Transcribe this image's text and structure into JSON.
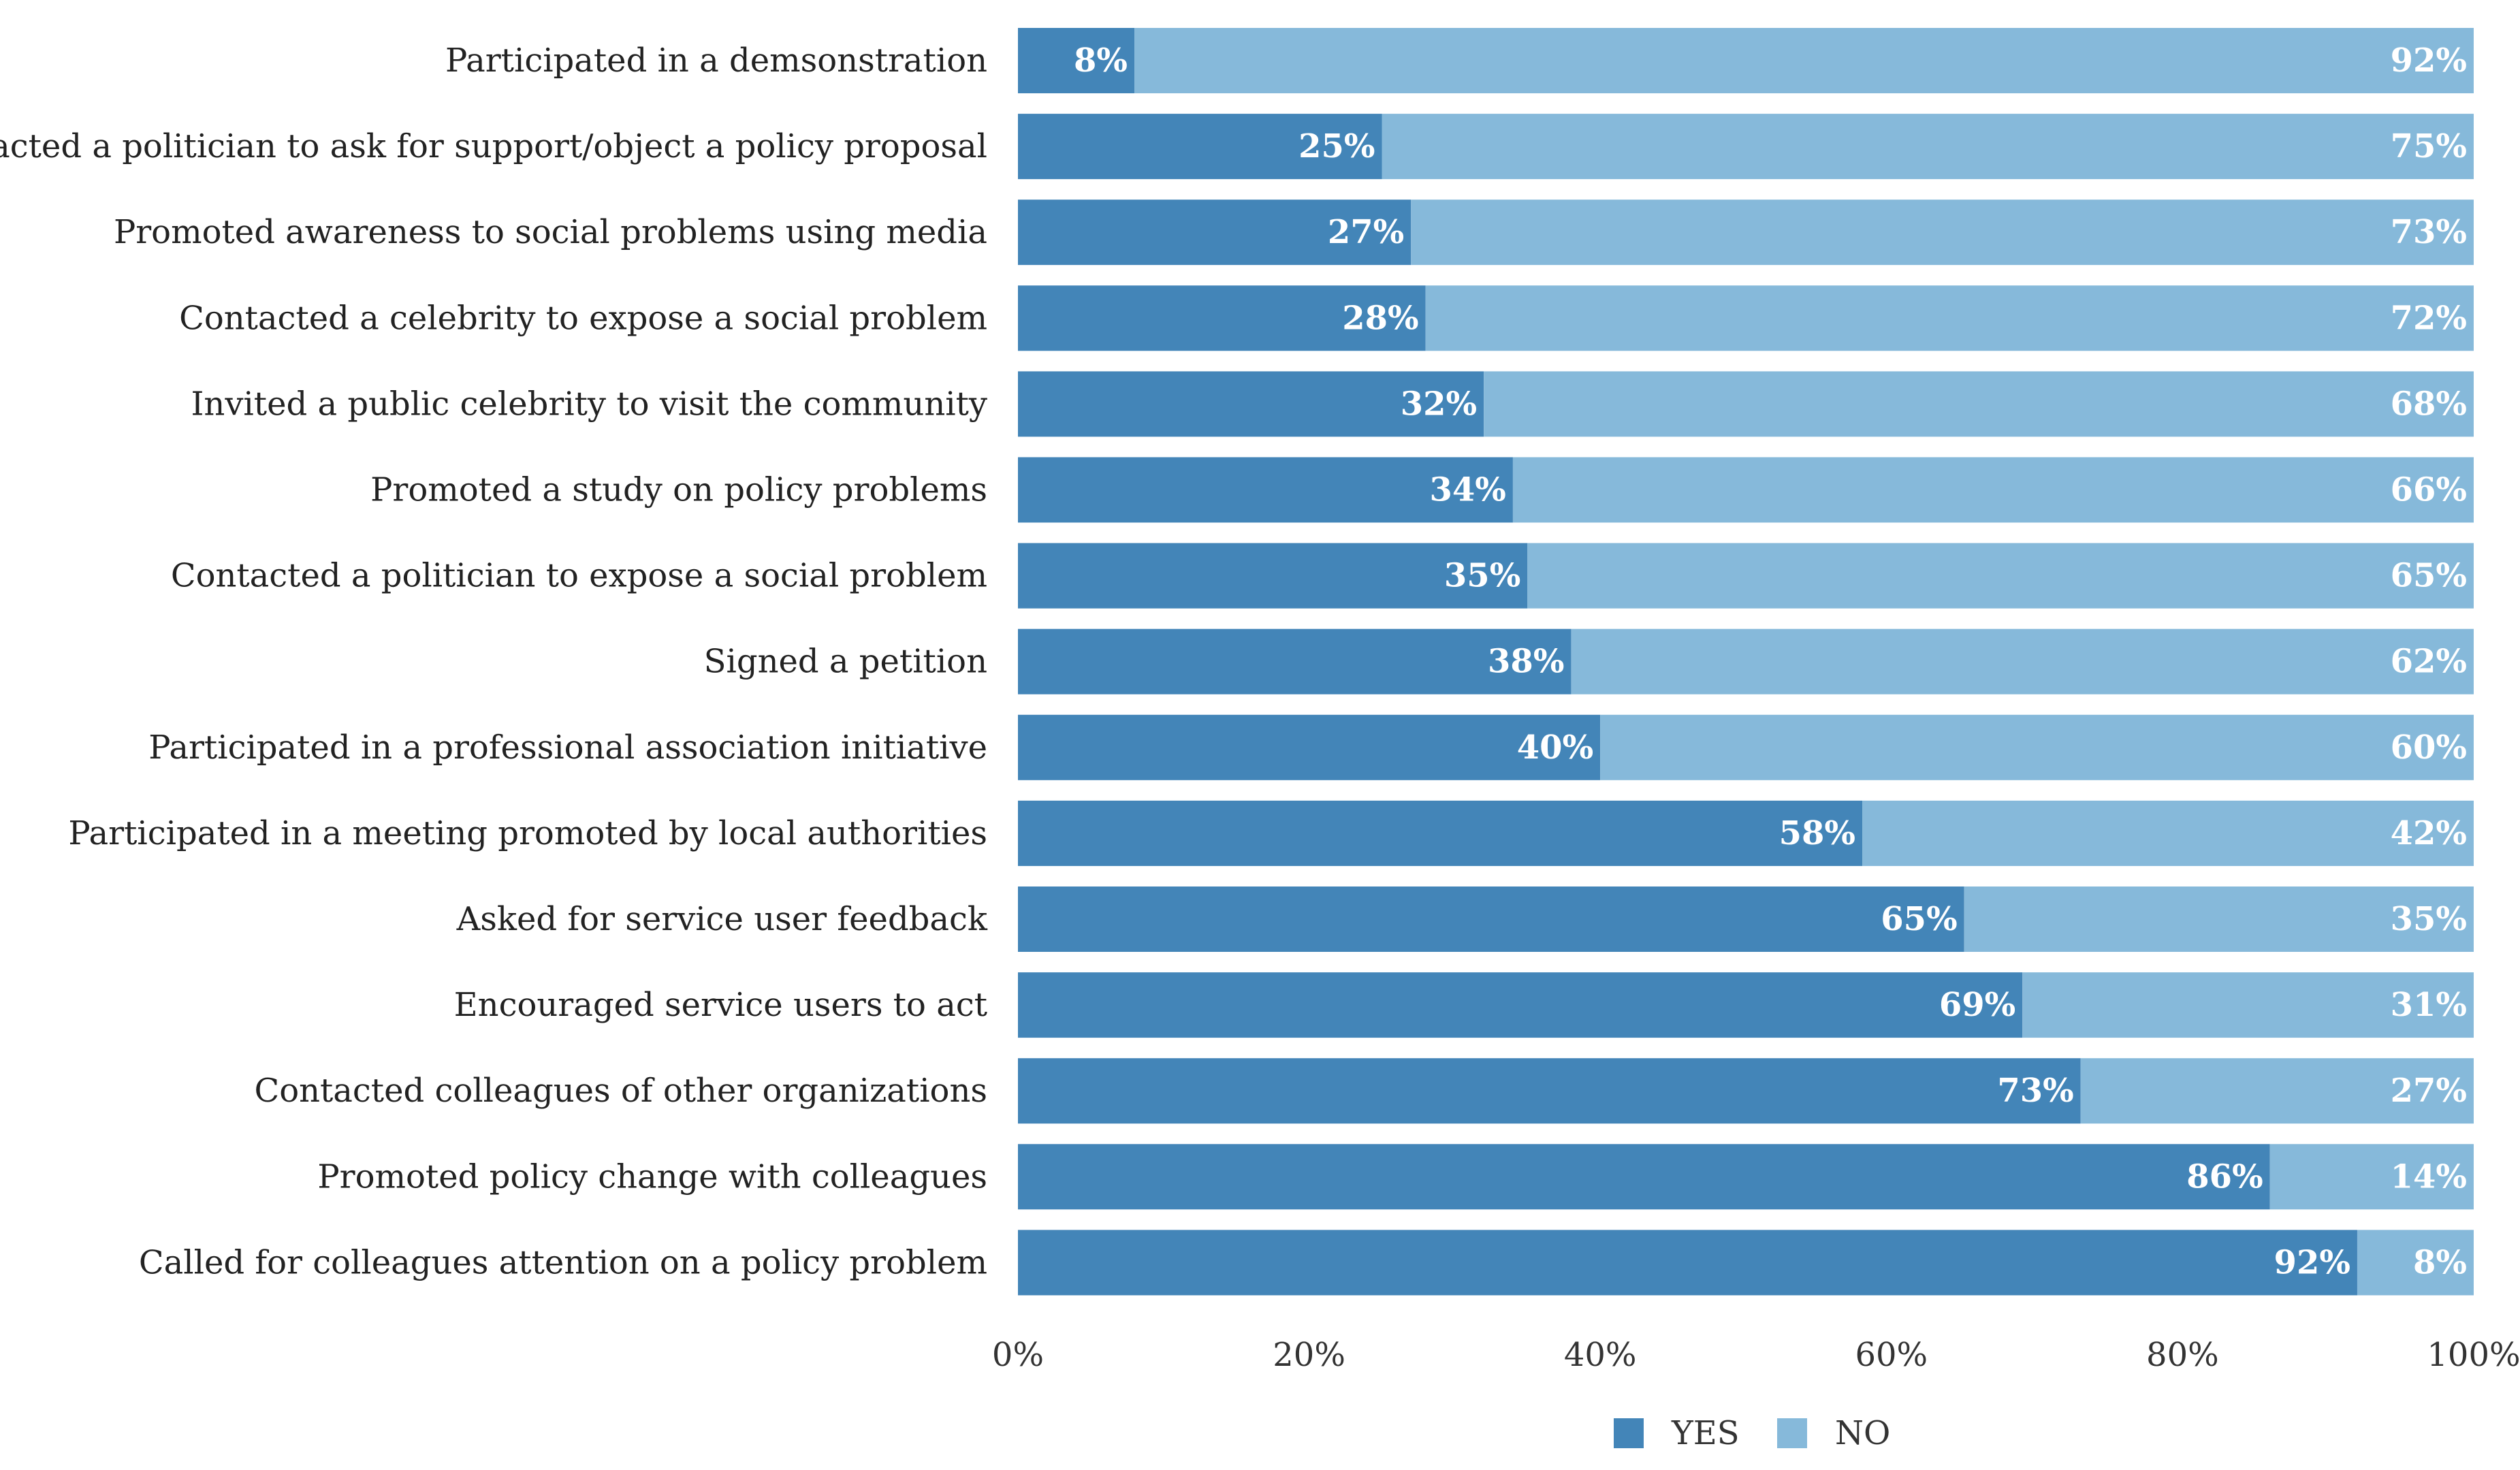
{
  "chart_data": {
    "type": "bar",
    "orientation": "horizontal",
    "stacked": true,
    "percent": true,
    "categories": [
      "Participated in a demsonstration",
      "Contacted a politician to ask for support/object a policy proposal",
      "Promoted awareness to social problems using media",
      "Contacted a celebrity to expose a social problem",
      "Invited a public celebrity to visit the community",
      "Promoted a study on policy problems",
      "Contacted a politician to expose a social problem",
      "Signed a petition",
      "Participated in a professional association initiative",
      "Participated in a meeting promoted by local authorities",
      "Asked for service user feedback",
      "Encouraged service users to act",
      "Contacted colleagues of other organizations",
      "Promoted policy change with colleagues",
      "Called for colleagues attention on a policy problem"
    ],
    "series": [
      {
        "name": "YES",
        "color": "#4385b8",
        "values": [
          8,
          25,
          27,
          28,
          32,
          34,
          35,
          38,
          40,
          58,
          65,
          69,
          73,
          86,
          92
        ],
        "labels": [
          "8%",
          "25%",
          "27%",
          "28%",
          "32%",
          "34%",
          "35%",
          "38%",
          "40%",
          "58%",
          "65%",
          "69%",
          "73%",
          "86%",
          "92%"
        ]
      },
      {
        "name": "NO",
        "color": "#86b9da",
        "values": [
          92,
          75,
          73,
          72,
          68,
          66,
          65,
          62,
          60,
          42,
          35,
          31,
          27,
          14,
          8
        ],
        "labels": [
          "92%",
          "75%",
          "73%",
          "72%",
          "68%",
          "66%",
          "65%",
          "62%",
          "60%",
          "42%",
          "35%",
          "31%",
          "27%",
          "14%",
          "8%"
        ]
      }
    ],
    "x_ticks": [
      "0%",
      "20%",
      "40%",
      "60%",
      "80%",
      "100%"
    ],
    "xlim": [
      0,
      100
    ],
    "grid": false,
    "legend": "bottom-center",
    "title": "",
    "xlabel": "",
    "ylabel": ""
  }
}
